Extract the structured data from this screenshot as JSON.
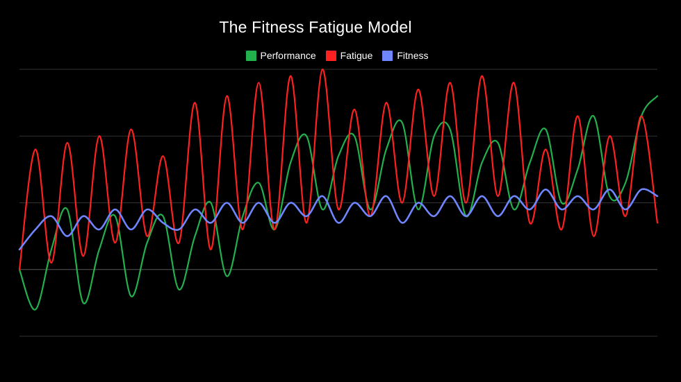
{
  "chart_data": {
    "type": "line",
    "title": "The Fitness Fatigue Model",
    "xlabel": "",
    "ylabel": "",
    "grid": true,
    "legend_position": "top-center",
    "ylim": [
      -1,
      3
    ],
    "gridlines": [
      -1,
      0,
      1,
      2,
      3
    ],
    "x": [
      0,
      0.5,
      1,
      1.5,
      2,
      2.5,
      3,
      3.5,
      4,
      4.5,
      5,
      5.5,
      6,
      6.5,
      7,
      7.5,
      8,
      8.5,
      9,
      9.5,
      10,
      10.5,
      11,
      11.5,
      12,
      12.5,
      13,
      13.5,
      14,
      14.5,
      15,
      15.5,
      16,
      16.5,
      17,
      17.5,
      18,
      18.5,
      19,
      19.5,
      20
    ],
    "series": [
      {
        "name": "Performance",
        "color": "#22b14c",
        "values": [
          0.0,
          -0.6,
          0.3,
          0.9,
          -0.5,
          0.3,
          0.8,
          -0.4,
          0.4,
          0.8,
          -0.3,
          0.5,
          1.0,
          -0.1,
          0.8,
          1.3,
          0.6,
          1.6,
          2.0,
          0.9,
          1.7,
          2.0,
          0.9,
          1.8,
          2.2,
          0.9,
          2.0,
          2.1,
          0.8,
          1.6,
          1.9,
          0.9,
          1.6,
          2.1,
          1.0,
          1.5,
          2.3,
          1.1,
          1.3,
          2.3,
          2.6
        ]
      },
      {
        "name": "Fatigue",
        "color": "#ff2020",
        "values": [
          0.0,
          1.8,
          0.1,
          1.9,
          0.2,
          2.0,
          0.4,
          2.1,
          0.5,
          1.7,
          0.4,
          2.5,
          0.3,
          2.6,
          0.6,
          2.8,
          0.6,
          2.9,
          0.7,
          3.0,
          0.9,
          2.4,
          0.8,
          2.5,
          1.0,
          2.7,
          1.1,
          2.8,
          1.0,
          2.9,
          1.1,
          2.8,
          0.7,
          1.8,
          0.6,
          2.3,
          0.5,
          2.0,
          0.8,
          2.3,
          0.7
        ]
      },
      {
        "name": "Fitness",
        "color": "#6f86ff",
        "values": [
          0.3,
          0.6,
          0.8,
          0.5,
          0.8,
          0.6,
          0.9,
          0.6,
          0.9,
          0.7,
          0.6,
          0.9,
          0.7,
          1.0,
          0.7,
          1.0,
          0.7,
          1.0,
          0.8,
          1.1,
          0.7,
          1.0,
          0.8,
          1.1,
          0.7,
          1.0,
          0.8,
          1.1,
          0.8,
          1.1,
          0.8,
          1.1,
          0.9,
          1.2,
          0.9,
          1.1,
          0.9,
          1.2,
          0.9,
          1.2,
          1.1
        ]
      }
    ]
  }
}
